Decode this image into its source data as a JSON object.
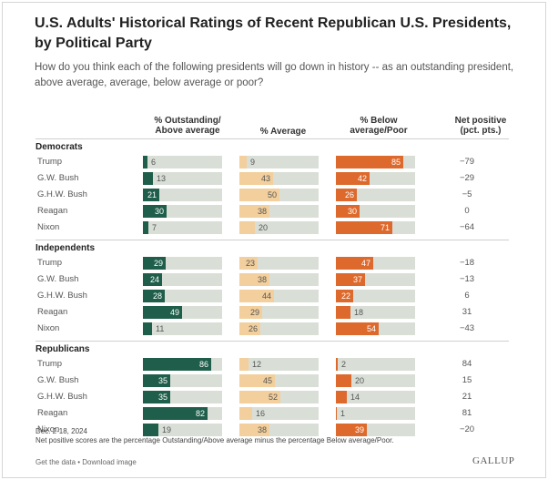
{
  "title": "U.S. Adults' Historical Ratings of Recent Republican U.S. Presidents, by Political Party",
  "subtitle": "How do you think each of the following presidents will go down in history -- as an outstanding president, above average, average, below average or poor?",
  "columns": {
    "outstanding": [
      "% Outstanding/",
      "Above average"
    ],
    "average": [
      "% Average"
    ],
    "below": [
      "% Below",
      "average/Poor"
    ],
    "net": [
      "Net positive",
      "(pct. pts.)"
    ]
  },
  "colors": {
    "outstanding": "#1f5e4a",
    "average": "#f2cf9c",
    "below": "#dd6a2c",
    "track": "#d9dfd7"
  },
  "chart_data": {
    "type": "bar",
    "xlim": [
      0,
      100
    ],
    "series_names": [
      "% Outstanding/Above average",
      "% Average",
      "% Below average/Poor",
      "Net positive (pct. pts.)"
    ],
    "groups": [
      {
        "name": "Democrats",
        "rows": [
          {
            "label": "Trump",
            "outstanding": 6,
            "average": 9,
            "below": 85,
            "net": "−79"
          },
          {
            "label": "G.W. Bush",
            "outstanding": 13,
            "average": 43,
            "below": 42,
            "net": "−29"
          },
          {
            "label": "G.H.W. Bush",
            "outstanding": 21,
            "average": 50,
            "below": 26,
            "net": "−5"
          },
          {
            "label": "Reagan",
            "outstanding": 30,
            "average": 38,
            "below": 30,
            "net": "0"
          },
          {
            "label": "Nixon",
            "outstanding": 7,
            "average": 20,
            "below": 71,
            "net": "−64"
          }
        ]
      },
      {
        "name": "Independents",
        "rows": [
          {
            "label": "Trump",
            "outstanding": 29,
            "average": 23,
            "below": 47,
            "net": "−18"
          },
          {
            "label": "G.W. Bush",
            "outstanding": 24,
            "average": 38,
            "below": 37,
            "net": "−13"
          },
          {
            "label": "G.H.W. Bush",
            "outstanding": 28,
            "average": 44,
            "below": 22,
            "net": "6"
          },
          {
            "label": "Reagan",
            "outstanding": 49,
            "average": 29,
            "below": 18,
            "net": "31"
          },
          {
            "label": "Nixon",
            "outstanding": 11,
            "average": 26,
            "below": 54,
            "net": "−43"
          }
        ]
      },
      {
        "name": "Republicans",
        "rows": [
          {
            "label": "Trump",
            "outstanding": 86,
            "average": 12,
            "below": 2,
            "net": "84"
          },
          {
            "label": "G.W. Bush",
            "outstanding": 35,
            "average": 45,
            "below": 20,
            "net": "15"
          },
          {
            "label": "G.H.W. Bush",
            "outstanding": 35,
            "average": 52,
            "below": 14,
            "net": "21"
          },
          {
            "label": "Reagan",
            "outstanding": 82,
            "average": 16,
            "below": 1,
            "net": "81"
          },
          {
            "label": "Nixon",
            "outstanding": 19,
            "average": 38,
            "below": 39,
            "net": "−20"
          }
        ]
      }
    ]
  },
  "notes": [
    "Dec. 2-18, 2024",
    "Net positive scores are the percentage Outstanding/Above average minus the percentage Below average/Poor."
  ],
  "footer": {
    "get_data": "Get the data",
    "separator": " • ",
    "download": "Download image"
  },
  "logo": "GALLUP"
}
